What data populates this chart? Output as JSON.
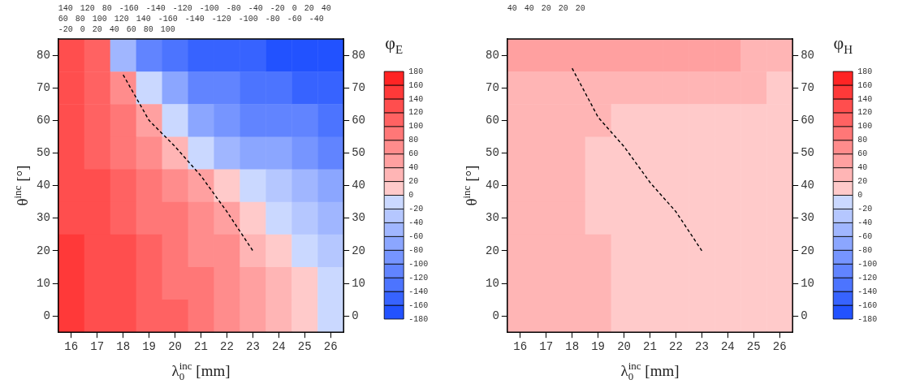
{
  "chart_data": [
    {
      "type": "heatmap",
      "clabel": "φ$_{E}$",
      "xlabel": "λ$_{0}$$^{inc}$ [mm]",
      "ylabel": "θ$^{inc}$ [°]",
      "categories": [
        "16",
        "17",
        "18",
        "19",
        "20",
        "21",
        "22",
        "23",
        "24",
        "25",
        "26"
      ],
      "y_categories": [
        "80",
        "70",
        "60",
        "50",
        "40",
        "30",
        "20",
        "10",
        "0"
      ],
      "cells": [
        [
          128,
          105,
          -40,
          -110,
          -135,
          -148,
          -152,
          -156,
          -160,
          -163,
          -166
        ],
        [
          125,
          105,
          70,
          -10,
          -60,
          -105,
          -115,
          -130,
          -138,
          -140,
          -148
        ],
        [
          125,
          108,
          85,
          50,
          -15,
          -60,
          -85,
          -100,
          -110,
          -118,
          -125
        ],
        [
          130,
          115,
          100,
          75,
          35,
          -10,
          -45,
          -65,
          -78,
          -90,
          -100
        ],
        [
          135,
          122,
          108,
          92,
          70,
          45,
          15,
          -15,
          -35,
          -55,
          -68
        ],
        [
          140,
          128,
          118,
          100,
          85,
          65,
          45,
          20,
          0,
          -25,
          -40
        ],
        [
          145,
          135,
          122,
          110,
          95,
          80,
          62,
          40,
          18,
          -5,
          -25
        ],
        [
          148,
          138,
          126,
          115,
          100,
          85,
          70,
          50,
          30,
          10,
          -12
        ],
        [
          150,
          140,
          128,
          118,
          105,
          95,
          75,
          55,
          35,
          15,
          -5
        ]
      ],
      "clim": [
        -180,
        180
      ],
      "cticks": [
        -180,
        -160,
        -140,
        -120,
        -100,
        -80,
        -60,
        -40,
        -20,
        0,
        20,
        40,
        60,
        80,
        100,
        120,
        140,
        160,
        180
      ],
      "y2lim": [
        -5,
        85
      ],
      "y2ticks": [
        0,
        10,
        20,
        30,
        40,
        50,
        60,
        70,
        80
      ],
      "series": [
        {
          "type": "line",
          "color": "#000000",
          "line_style": "dashed",
          "axis": "y2",
          "values": [
            null,
            null,
            74,
            60,
            52,
            43,
            32,
            20,
            null,
            null,
            null
          ]
        }
      ],
      "annotations": [
        "140",
        "120",
        "80",
        "-160",
        "-140",
        "-120",
        "-100",
        "-80",
        "-40",
        "-20",
        "0",
        "20",
        "40",
        "60",
        "80",
        "100",
        "120",
        "140",
        "-160",
        "-140",
        "-120",
        "-100",
        "-80",
        "-60",
        "-40",
        "-20",
        "0",
        "20",
        "40",
        "60",
        "80",
        "100"
      ]
    },
    {
      "type": "heatmap",
      "clabel": "φ$_{H}$",
      "xlabel": "λ$_{0}$$^{inc}$ [mm]",
      "ylabel": "θ$^{inc}$ [°]",
      "categories": [
        "16",
        "17",
        "18",
        "19",
        "20",
        "21",
        "22",
        "23",
        "24",
        "25",
        "26"
      ],
      "y_categories": [
        "80",
        "70",
        "60",
        "50",
        "40",
        "30",
        "20",
        "10",
        "0"
      ],
      "cells": [
        [
          57,
          55,
          52,
          49,
          46,
          44,
          43,
          42,
          41,
          40,
          38
        ],
        [
          38,
          37,
          36,
          35,
          31,
          29,
          27,
          25,
          23,
          21,
          19
        ],
        [
          34,
          32,
          29,
          23,
          20,
          18,
          17,
          16,
          16,
          15,
          15
        ],
        [
          32,
          30,
          27,
          19,
          17,
          16,
          15,
          15,
          14,
          14,
          14
        ],
        [
          31,
          29,
          25,
          19,
          17,
          15,
          15,
          14,
          14,
          14,
          14
        ],
        [
          30,
          28,
          24,
          19,
          17,
          16,
          15,
          14,
          14,
          14,
          14
        ],
        [
          30,
          28,
          25,
          21,
          17,
          16,
          15,
          14,
          14,
          14,
          14
        ],
        [
          30,
          28,
          25,
          22,
          18,
          16,
          15,
          14,
          14,
          14,
          14
        ],
        [
          30,
          28,
          26,
          23,
          18,
          16,
          15,
          14,
          14,
          14,
          14
        ]
      ],
      "clim": [
        -180,
        180
      ],
      "cticks": [
        -180,
        -160,
        -140,
        -120,
        -100,
        -80,
        -60,
        -40,
        -20,
        0,
        20,
        40,
        60,
        80,
        100,
        120,
        140,
        160,
        180
      ],
      "y2lim": [
        -5,
        85
      ],
      "y2ticks": [
        0,
        10,
        20,
        30,
        40,
        50,
        60,
        70,
        80
      ],
      "series": [
        {
          "type": "line",
          "color": "#000000",
          "line_style": "dashed",
          "axis": "y2",
          "values": [
            null,
            null,
            76,
            61,
            52,
            41,
            32,
            20,
            null,
            null,
            null
          ]
        }
      ],
      "annotations": [
        "40",
        "40",
        "20",
        "20",
        "20"
      ]
    }
  ]
}
